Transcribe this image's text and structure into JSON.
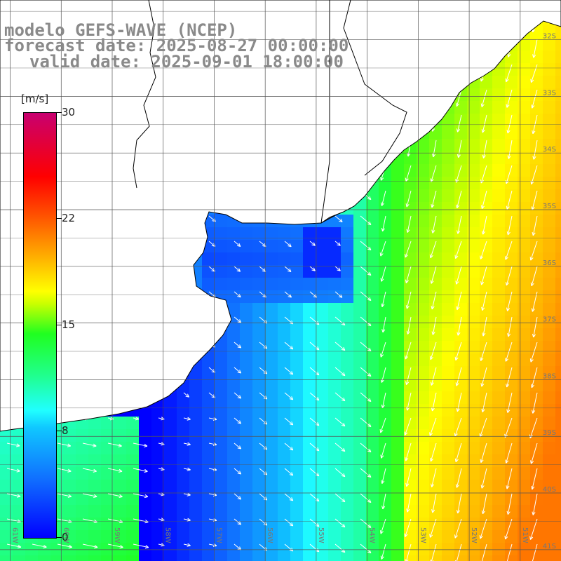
{
  "title": {
    "line1": "modelo GEFS-WAVE (NCEP)",
    "line2": "forecast date: 2025-08-27 00:00:00",
    "line3": "valid date: 2025-09-01 18:00:00"
  },
  "colorbar": {
    "unit": "[m/s]",
    "ticks": [
      "30",
      "22",
      "15",
      "8",
      "0"
    ],
    "min": 0,
    "max": 30,
    "colors": [
      "#0000ff",
      "#10c8ff",
      "#20ffff",
      "#20ff20",
      "#ffff00",
      "#ff5000",
      "#ff0000",
      "#c80070"
    ]
  },
  "map": {
    "lat_labels": [
      "32S",
      "33S",
      "34S",
      "35S",
      "36S",
      "37S",
      "38S",
      "39S",
      "40S",
      "41S"
    ],
    "lon_labels": [
      "61W",
      "60W",
      "59W",
      "58W",
      "57W",
      "56W",
      "55W",
      "54W",
      "53W",
      "52W",
      "51W"
    ],
    "lat_range": [
      -41.2,
      -31.1
    ],
    "lon_range": [
      -61.3,
      -50.2
    ],
    "colors": {
      "land": "#ffffff",
      "coast": "#000000",
      "grid": "#555555",
      "arrow": "#ffffff"
    }
  }
}
